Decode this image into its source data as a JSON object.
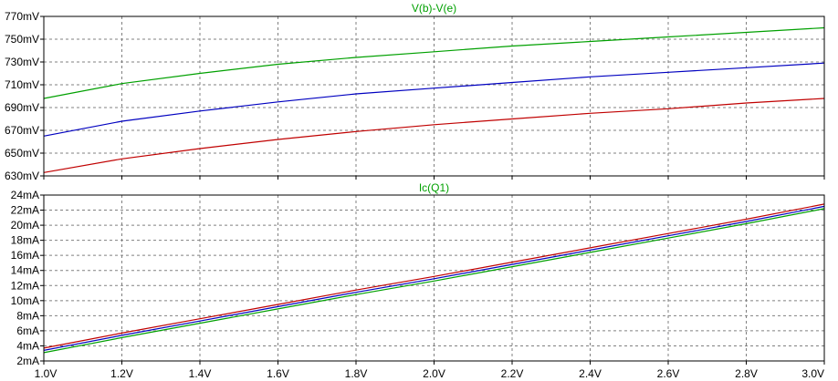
{
  "chart_data": [
    {
      "type": "line",
      "title": "V(b)-V(e)",
      "title_color": "#00a000",
      "xlabel": "",
      "ylabel": "",
      "xlim": [
        1.0,
        3.0
      ],
      "ylim": [
        630,
        770
      ],
      "grid": true,
      "x_ticks": [
        "1.0V",
        "1.2V",
        "1.4V",
        "1.6V",
        "1.8V",
        "2.0V",
        "2.2V",
        "2.4V",
        "2.6V",
        "2.8V",
        "3.0V"
      ],
      "y_ticks": [
        "630mV",
        "650mV",
        "670mV",
        "690mV",
        "710mV",
        "730mV",
        "750mV",
        "770mV"
      ],
      "x": [
        1.0,
        1.2,
        1.4,
        1.6,
        1.8,
        2.0,
        2.2,
        2.4,
        2.6,
        2.8,
        3.0
      ],
      "series": [
        {
          "color": "#00a000",
          "values": [
            698,
            711,
            720,
            728,
            734,
            739,
            744,
            748,
            752,
            756,
            760
          ]
        },
        {
          "color": "#0000c0",
          "values": [
            665,
            678,
            687,
            695,
            702,
            707,
            712,
            717,
            721,
            725,
            729
          ]
        },
        {
          "color": "#c00000",
          "values": [
            633,
            645,
            654,
            662,
            669,
            675,
            680,
            685,
            689,
            694,
            698
          ]
        }
      ]
    },
    {
      "type": "line",
      "title": "Ic(Q1)",
      "title_color": "#00a000",
      "xlabel": "",
      "ylabel": "",
      "xlim": [
        1.0,
        3.0
      ],
      "ylim": [
        2,
        24
      ],
      "grid": true,
      "x_ticks": [
        "1.0V",
        "1.2V",
        "1.4V",
        "1.6V",
        "1.8V",
        "2.0V",
        "2.2V",
        "2.4V",
        "2.6V",
        "2.8V",
        "3.0V"
      ],
      "y_ticks": [
        "2mA",
        "4mA",
        "6mA",
        "8mA",
        "10mA",
        "12mA",
        "14mA",
        "16mA",
        "18mA",
        "20mA",
        "22mA",
        "24mA"
      ],
      "x": [
        1.0,
        1.2,
        1.4,
        1.6,
        1.8,
        2.0,
        2.2,
        2.4,
        2.6,
        2.8,
        3.0
      ],
      "series": [
        {
          "color": "#c00000",
          "values": [
            3.7,
            5.7,
            7.6,
            9.5,
            11.4,
            13.2,
            15.1,
            17.0,
            18.9,
            20.8,
            22.8
          ]
        },
        {
          "color": "#0000c0",
          "values": [
            3.4,
            5.4,
            7.3,
            9.2,
            11.1,
            12.9,
            14.8,
            16.7,
            18.6,
            20.5,
            22.5
          ]
        },
        {
          "color": "#00a000",
          "values": [
            3.1,
            5.1,
            7.0,
            8.9,
            10.8,
            12.6,
            14.5,
            16.4,
            18.3,
            20.2,
            22.2
          ]
        }
      ]
    }
  ]
}
